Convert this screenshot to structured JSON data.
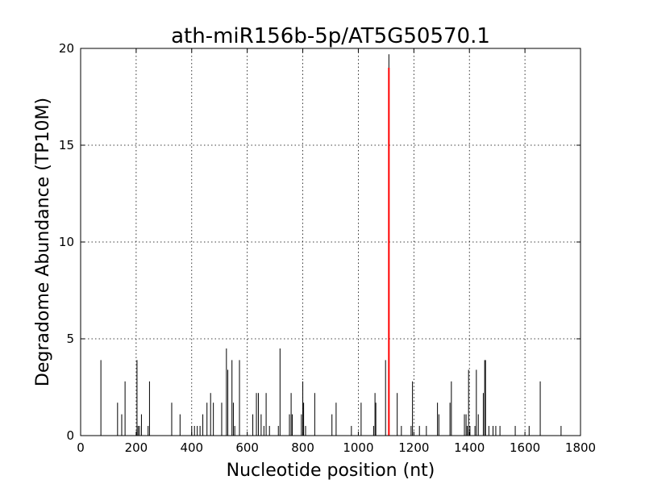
{
  "chart_data": {
    "type": "bar",
    "title": "ath-miR156b-5p/AT5G50570.1",
    "xlabel": "Nucleotide position (nt)",
    "ylabel": "Degradome Abundance (TP10M)",
    "xlim": [
      0,
      1800
    ],
    "ylim": [
      0,
      20
    ],
    "xticks": [
      0,
      200,
      400,
      600,
      800,
      1000,
      1200,
      1400,
      1600,
      1800
    ],
    "yticks": [
      0,
      5,
      10,
      15,
      20
    ],
    "grid": true,
    "colors": {
      "bars": "#000000",
      "target": "#ff0000"
    },
    "series": [
      {
        "values": [
          [
            73,
            3.9
          ],
          [
            133,
            1.7
          ],
          [
            148,
            1.1
          ],
          [
            160,
            2.8
          ],
          [
            203,
            3.9
          ],
          [
            207,
            0.5
          ],
          [
            212,
            0.5
          ],
          [
            219,
            1.1
          ],
          [
            243,
            0.5
          ],
          [
            248,
            2.8
          ],
          [
            328,
            1.7
          ],
          [
            358,
            1.1
          ],
          [
            400,
            0.5
          ],
          [
            410,
            0.5
          ],
          [
            420,
            0.5
          ],
          [
            430,
            0.5
          ],
          [
            440,
            1.1
          ],
          [
            455,
            1.7
          ],
          [
            468,
            2.2
          ],
          [
            478,
            1.7
          ],
          [
            508,
            1.7
          ],
          [
            525,
            4.5
          ],
          [
            530,
            3.4
          ],
          [
            545,
            3.9
          ],
          [
            550,
            1.7
          ],
          [
            555,
            0.5
          ],
          [
            572,
            3.9
          ],
          [
            620,
            1.1
          ],
          [
            633,
            2.2
          ],
          [
            640,
            2.2
          ],
          [
            650,
            1.1
          ],
          [
            660,
            0.5
          ],
          [
            668,
            2.2
          ],
          [
            680,
            0.5
          ],
          [
            712,
            0.5
          ],
          [
            718,
            4.5
          ],
          [
            752,
            1.1
          ],
          [
            758,
            2.2
          ],
          [
            762,
            1.1
          ],
          [
            795,
            1.1
          ],
          [
            800,
            2.8
          ],
          [
            803,
            1.7
          ],
          [
            810,
            0.5
          ],
          [
            843,
            2.2
          ],
          [
            905,
            1.1
          ],
          [
            920,
            1.7
          ],
          [
            975,
            0.5
          ],
          [
            1010,
            1.7
          ],
          [
            1055,
            0.5
          ],
          [
            1060,
            2.2
          ],
          [
            1063,
            1.7
          ],
          [
            1098,
            3.9
          ],
          [
            1110,
            19.7
          ],
          [
            1140,
            2.2
          ],
          [
            1155,
            0.5
          ],
          [
            1190,
            0.5
          ],
          [
            1195,
            2.8
          ],
          [
            1220,
            0.5
          ],
          [
            1245,
            0.5
          ],
          [
            1285,
            1.7
          ],
          [
            1290,
            1.1
          ],
          [
            1330,
            1.7
          ],
          [
            1335,
            2.8
          ],
          [
            1382,
            1.1
          ],
          [
            1388,
            1.1
          ],
          [
            1392,
            0.5
          ],
          [
            1397,
            3.4
          ],
          [
            1402,
            0.5
          ],
          [
            1420,
            0.5
          ],
          [
            1425,
            3.4
          ],
          [
            1432,
            1.1
          ],
          [
            1450,
            2.2
          ],
          [
            1455,
            3.9
          ],
          [
            1458,
            3.9
          ],
          [
            1470,
            0.5
          ],
          [
            1485,
            0.5
          ],
          [
            1495,
            0.5
          ],
          [
            1510,
            0.5
          ],
          [
            1565,
            0.5
          ],
          [
            1615,
            0.5
          ],
          [
            1655,
            2.8
          ],
          [
            1730,
            0.5
          ]
        ]
      }
    ],
    "target": {
      "x": 1110,
      "y": 19.0
    }
  }
}
